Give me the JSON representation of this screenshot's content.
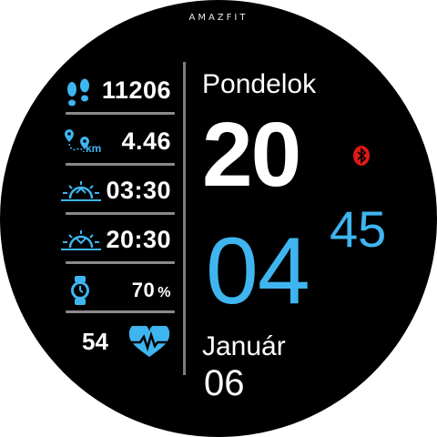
{
  "watch": {
    "brand": "AMAZFIT"
  },
  "stats": {
    "steps": "11206",
    "distance": "4.46",
    "distance_unit": "km",
    "sunrise": "03:30",
    "sunset": "20:30",
    "battery": "70",
    "battery_unit": "%",
    "heart_rate": "54"
  },
  "time": {
    "weekday": "Pondelok",
    "hours": "20",
    "minutes": "04",
    "seconds": "45",
    "month": "Január",
    "day": "06"
  },
  "colors": {
    "accent": "#3fb5ef",
    "bluetooth": "#e01818",
    "divider": "#7c7c7c"
  },
  "icons": {
    "steps": "footsteps-icon",
    "distance": "route-pin-icon",
    "sunrise": "sunrise-icon",
    "sunset": "sunset-icon",
    "battery": "watch-icon",
    "heart": "heart-pulse-icon",
    "bluetooth": "bluetooth-icon"
  }
}
